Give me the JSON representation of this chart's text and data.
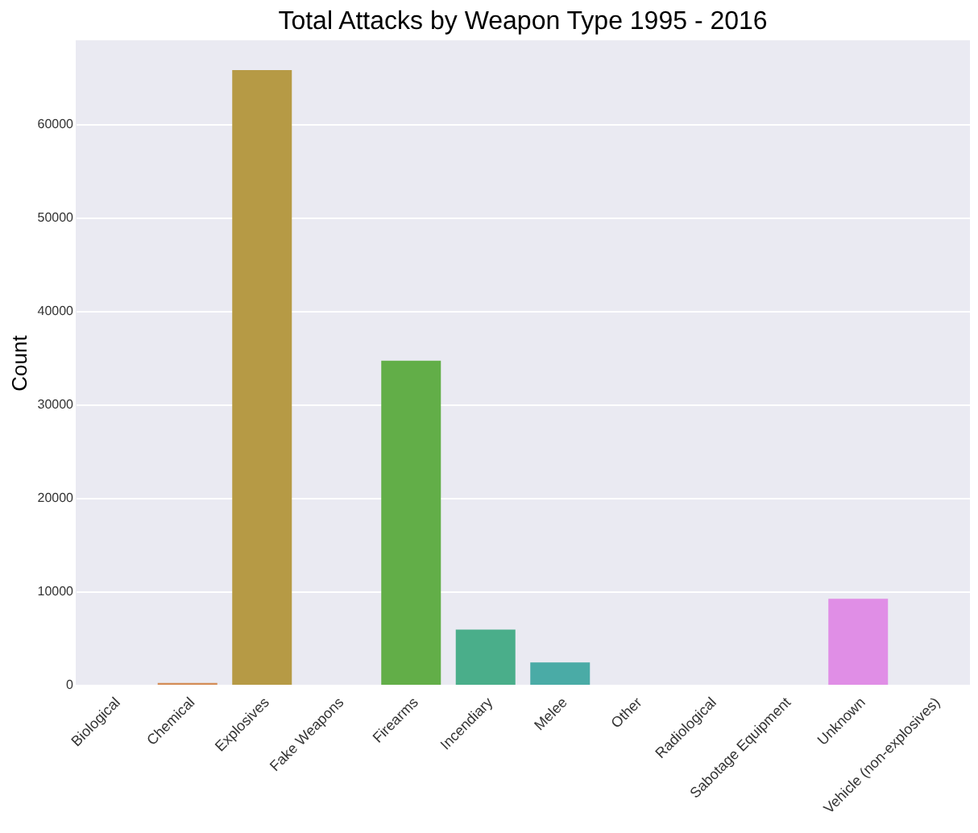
{
  "chart_data": {
    "type": "bar",
    "title": "Total Attacks by Weapon Type 1995 - 2016",
    "ylabel": "Count",
    "categories": [
      "Biological",
      "Chemical",
      "Explosives",
      "Fake Weapons",
      "Firearms",
      "Incendiary",
      "Melee",
      "Other",
      "Radiological",
      "Sabotage Equipment",
      "Unknown",
      "Vehicle (non-explosives)"
    ],
    "values": [
      0,
      200,
      65800,
      0,
      34700,
      5900,
      2400,
      0,
      0,
      0,
      9200,
      0
    ],
    "colors": [
      "#e8829a",
      "#d38c55",
      "#b69a45",
      "#8ea445",
      "#62ae48",
      "#4aae8a",
      "#4aaba6",
      "#4ca8c2",
      "#7c9ce8",
      "#b48ae6",
      "#e08ee6",
      "#e88ab8"
    ],
    "ylim": [
      0,
      69000
    ],
    "yticks": [
      0,
      10000,
      20000,
      30000,
      40000,
      50000,
      60000
    ],
    "grid": "y"
  }
}
